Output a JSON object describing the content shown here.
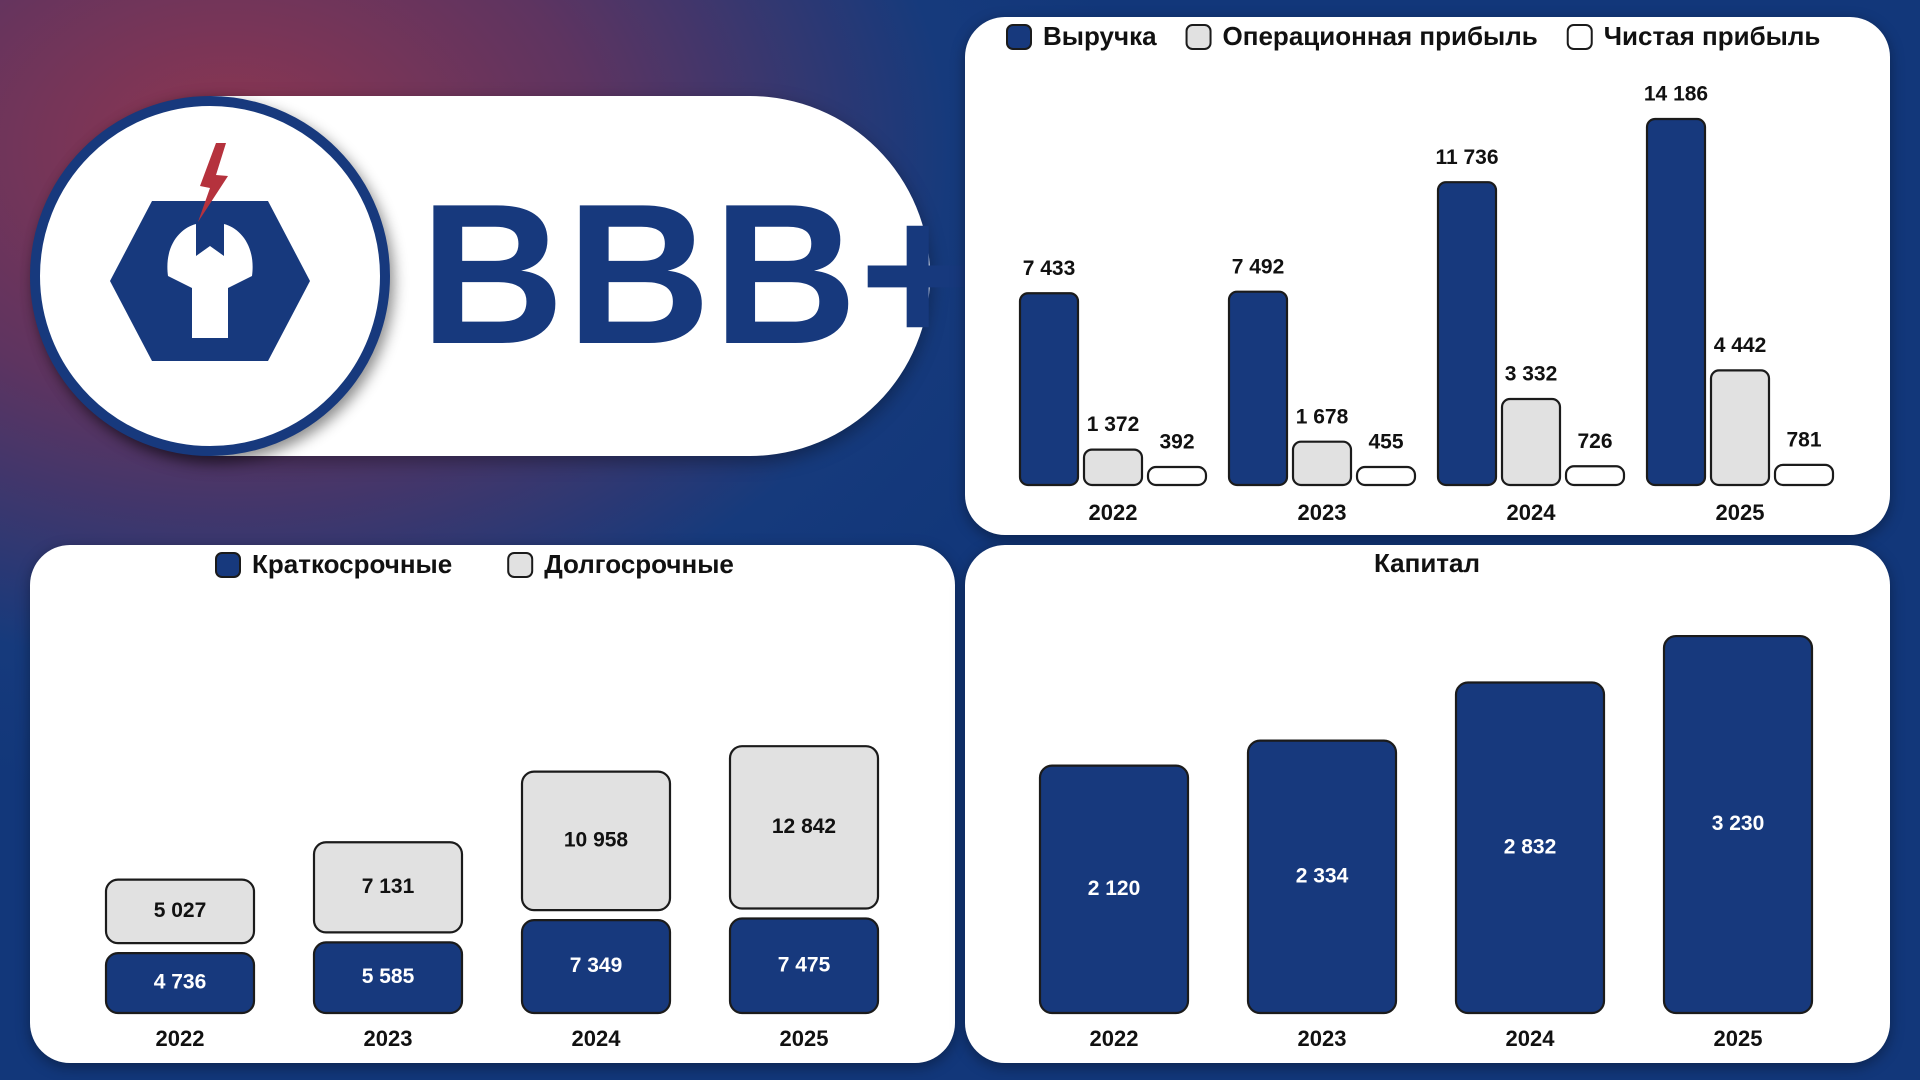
{
  "rating": {
    "text": "BBB+"
  },
  "colors": {
    "navy": "#17397d",
    "gray": "#e1e1e1",
    "white": "#ffffff",
    "red": "#b5323d",
    "stroke": "#1b1b1b"
  },
  "chart_data": [
    {
      "type": "bar",
      "categories": [
        "2022",
        "2023",
        "2024",
        "2025"
      ],
      "series": [
        {
          "name": "Выручка",
          "values": [
            7433,
            7492,
            11736,
            14186
          ],
          "labels": [
            "7 433",
            "7 492",
            "11 736",
            "14 186"
          ],
          "color": "#17397d"
        },
        {
          "name": "Операционная прибыль",
          "values": [
            1372,
            1678,
            3332,
            4442
          ],
          "labels": [
            "1 372",
            "1 678",
            "3 332",
            "4 442"
          ],
          "color": "#e1e1e1"
        },
        {
          "name": "Чистая прибыль",
          "values": [
            392,
            455,
            726,
            781
          ],
          "labels": [
            "392",
            "455",
            "726",
            "781"
          ],
          "color": "#ffffff"
        }
      ],
      "title": "",
      "ylim": [
        0,
        14186
      ],
      "legend": "top",
      "grid": false
    },
    {
      "type": "bar",
      "stacked": true,
      "categories": [
        "2022",
        "2023",
        "2024",
        "2025"
      ],
      "series": [
        {
          "name": "Краткосрочные",
          "values": [
            4736,
            5585,
            7349,
            7475
          ],
          "labels": [
            "4 736",
            "5 585",
            "7 349",
            "7 475"
          ],
          "color": "#17397d"
        },
        {
          "name": "Долгосрочные",
          "values": [
            5027,
            7131,
            10958,
            12842
          ],
          "labels": [
            "5 027",
            "7 131",
            "10 958",
            "12 842"
          ],
          "color": "#e1e1e1"
        }
      ],
      "title": "",
      "legend": "top",
      "grid": false
    },
    {
      "type": "bar",
      "categories": [
        "2022",
        "2023",
        "2024",
        "2025"
      ],
      "values": [
        2120,
        2334,
        2832,
        3230
      ],
      "labels": [
        "2 120",
        "2 334",
        "2 832",
        "3 230"
      ],
      "title": "Капитал",
      "color": "#17397d",
      "grid": false
    }
  ]
}
